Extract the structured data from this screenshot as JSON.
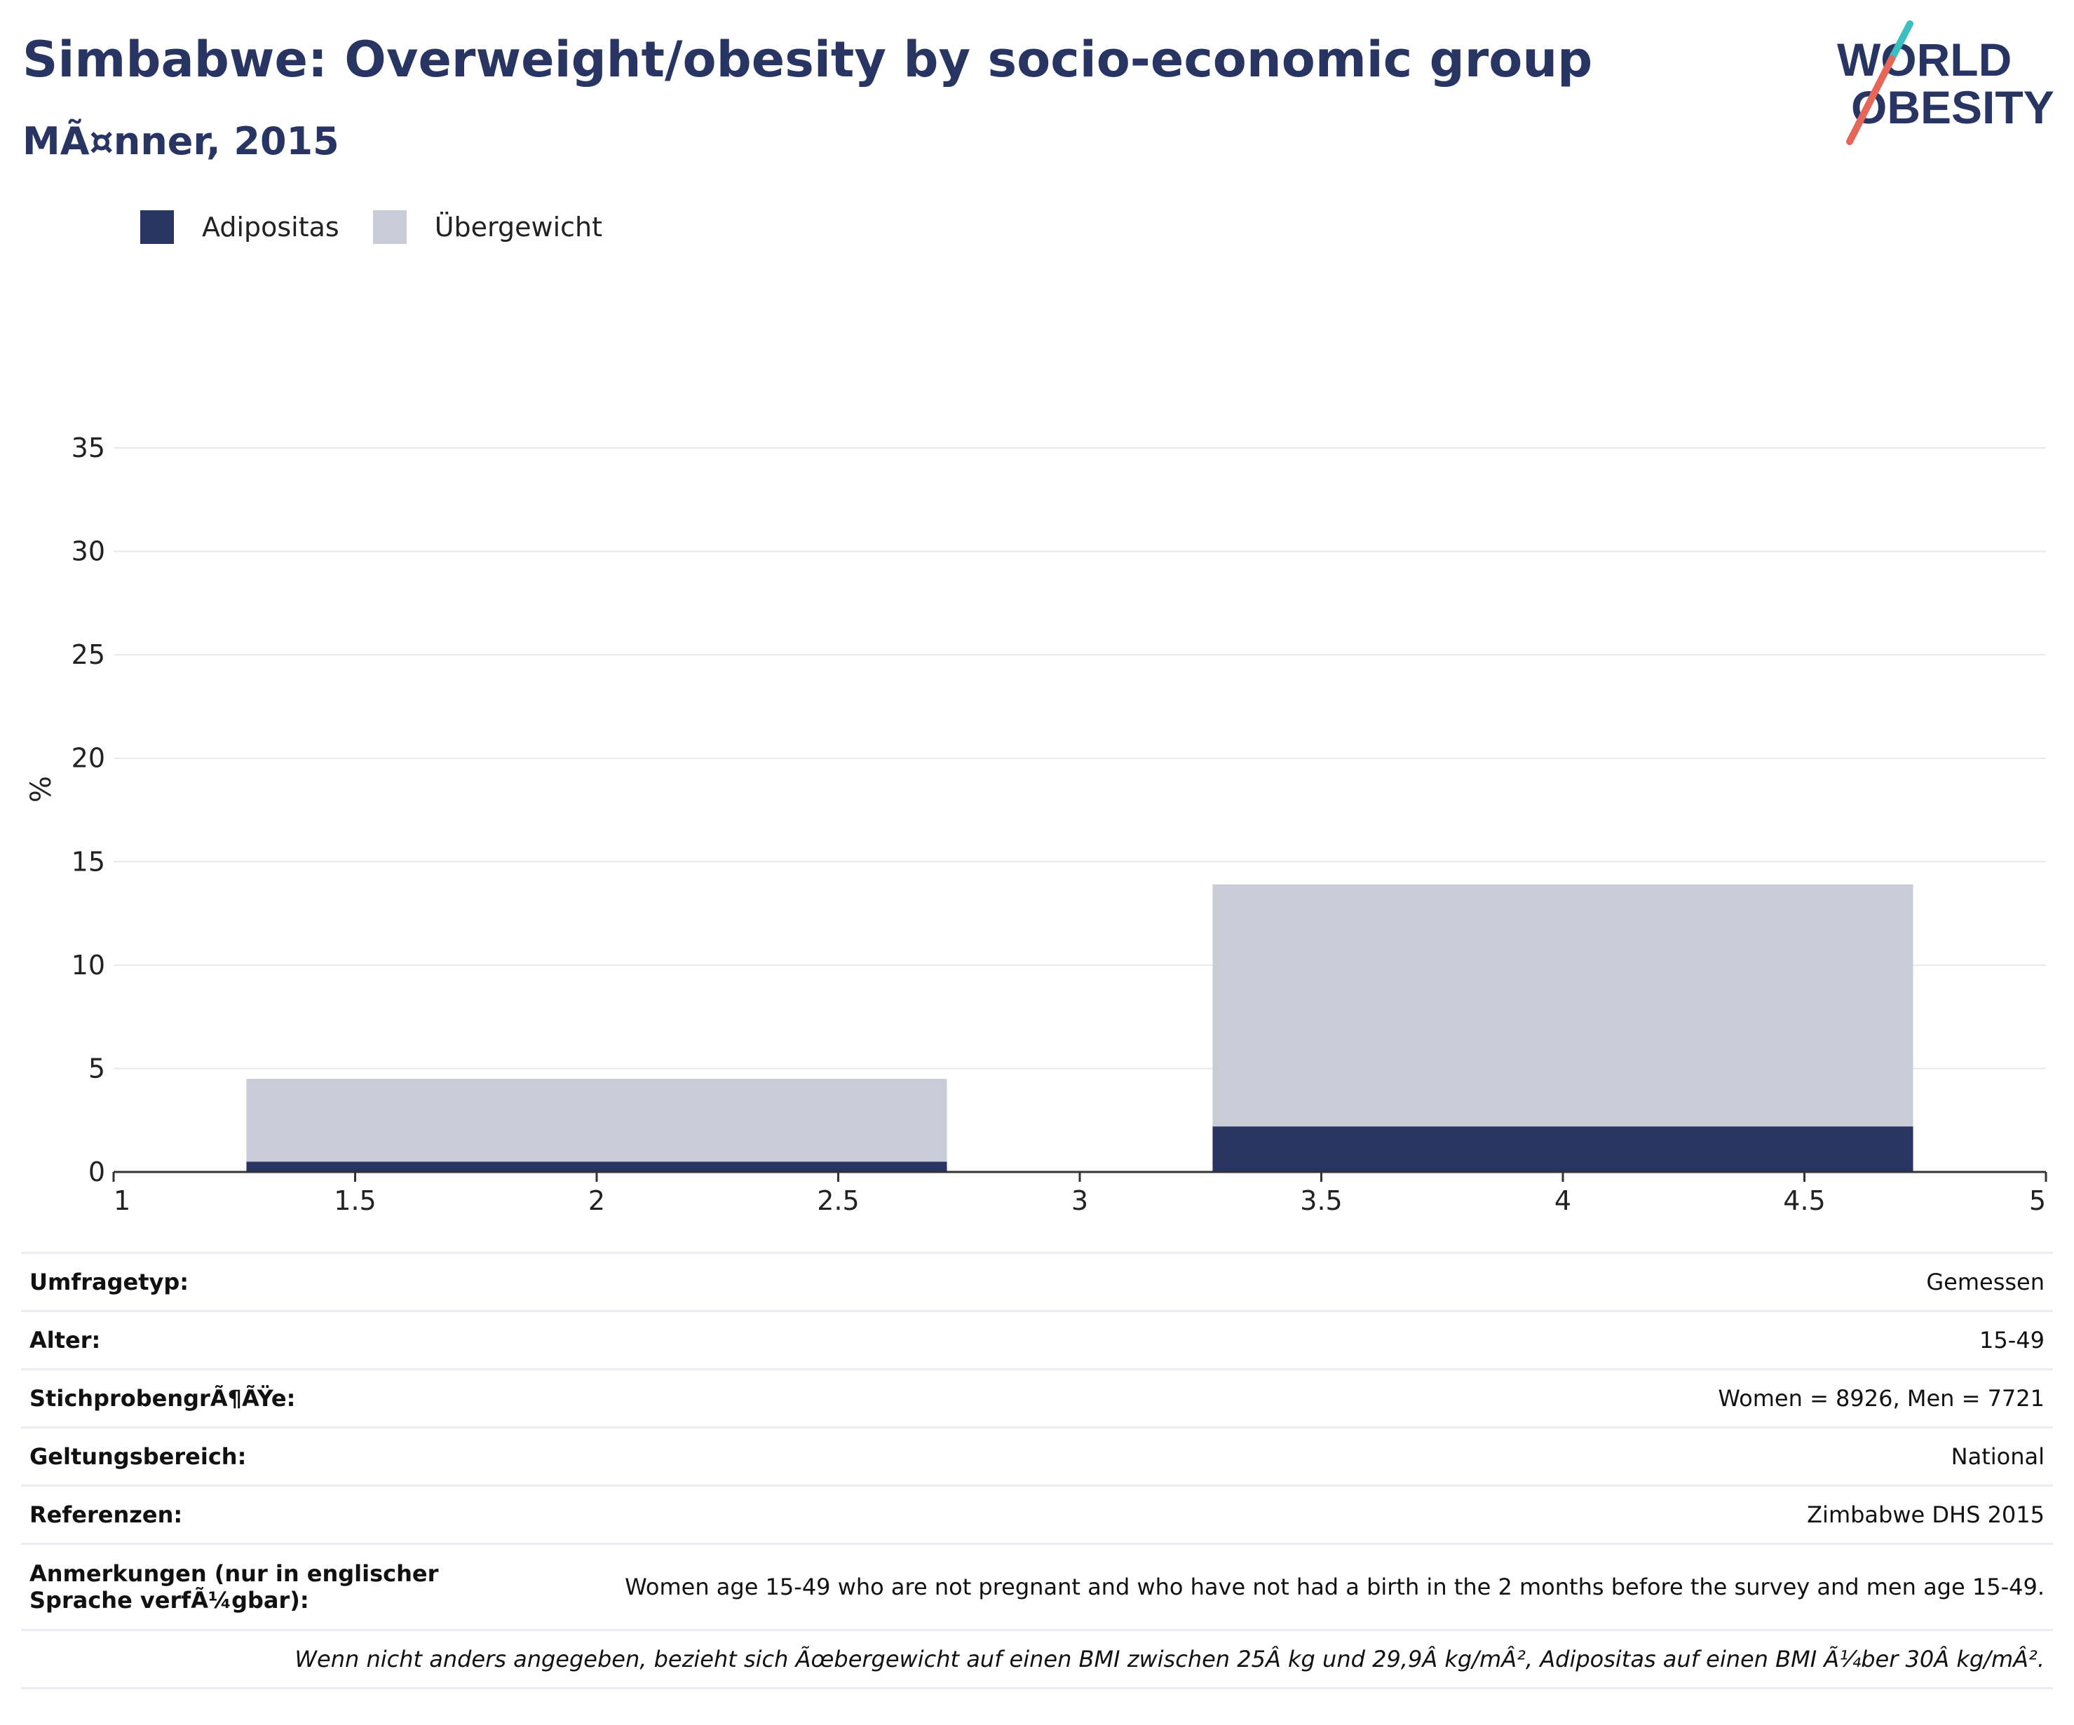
{
  "header": {
    "title": "Simbabwe: Overweight/obesity by socio-economic group",
    "subtitle": "MÃ¤nner, 2015"
  },
  "logo": {
    "line1": "WORLD",
    "line2": "OBESITY"
  },
  "legend": [
    {
      "label": "Adipositas",
      "color": "#283563"
    },
    {
      "label": "Übergewicht",
      "color": "#c9ccd7"
    }
  ],
  "chart_data": {
    "type": "bar",
    "stacked": true,
    "x": [
      2,
      4
    ],
    "bar_width": 1.45,
    "series": [
      {
        "name": "Adipositas",
        "color": "#283563",
        "values": [
          0.5,
          2.2
        ]
      },
      {
        "name": "Übergewicht",
        "color": "#c9ccd7",
        "values": [
          4.0,
          11.7
        ]
      }
    ],
    "xlim": [
      1,
      5
    ],
    "ylim": [
      0,
      37
    ],
    "xticks": [
      "1",
      "1.5",
      "2",
      "2.5",
      "3",
      "3.5",
      "4",
      "4.5",
      "5"
    ],
    "yticks": [
      "0",
      "5",
      "10",
      "15",
      "20",
      "25",
      "30",
      "35"
    ],
    "xlabel": "",
    "ylabel": "%",
    "grid": true
  },
  "info_table": [
    {
      "key": "Umfragetyp:",
      "value": "Gemessen"
    },
    {
      "key": "Alter:",
      "value": "15-49"
    },
    {
      "key": "StichprobengrÃ¶ÃŸe:",
      "value": "Women = 8926, Men = 7721"
    },
    {
      "key": "Geltungsbereich:",
      "value": "National"
    },
    {
      "key": "Referenzen:",
      "value": "Zimbabwe DHS 2015"
    },
    {
      "key": "Anmerkungen (nur in englischer Sprache verfÃ¼gbar):",
      "value": "Women age 15-49 who are not pregnant and who have not had a birth in the 2 months before the survey and men age 15-49."
    }
  ],
  "footnote": "Wenn nicht anders angegeben, bezieht sich Ãœbergewicht auf einen BMI zwischen 25Â kg und 29,9Â kg/mÂ², Adipositas auf einen BMI Ã¼ber 30Â kg/mÂ²."
}
